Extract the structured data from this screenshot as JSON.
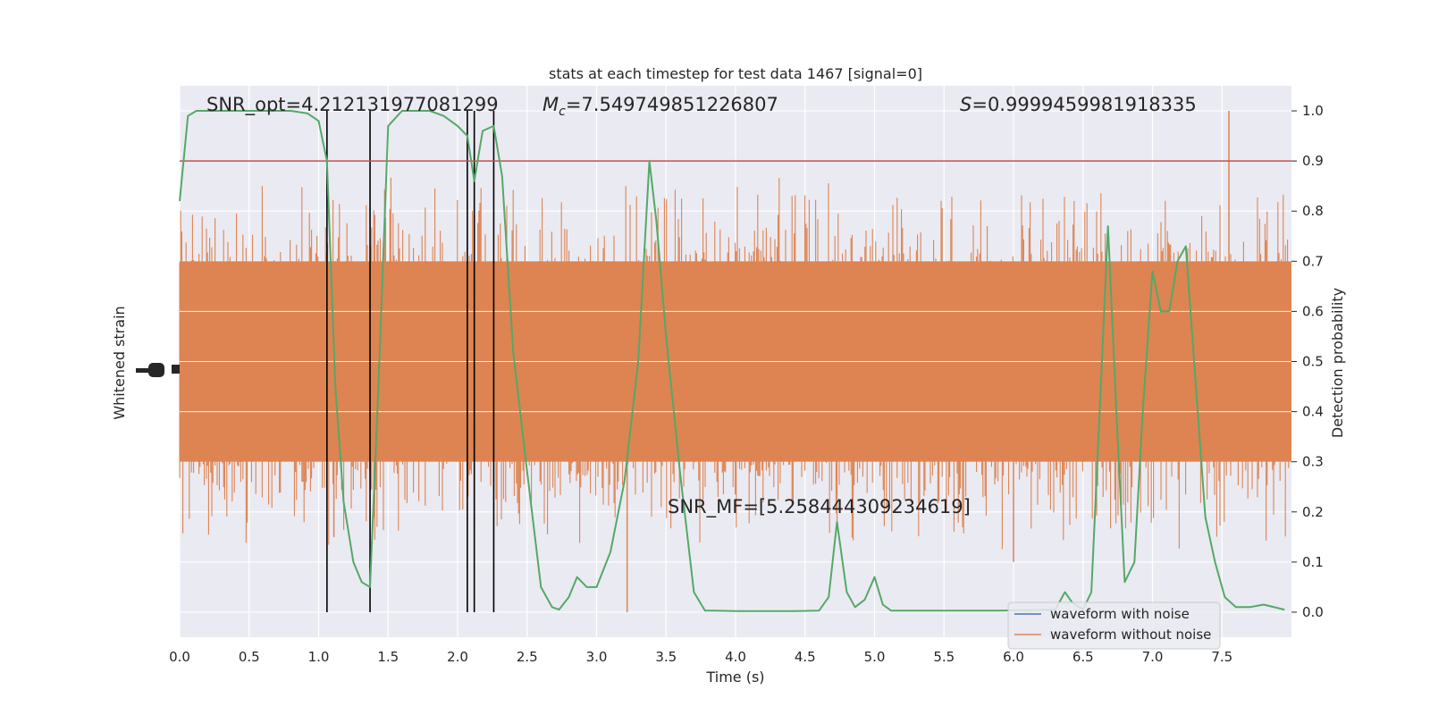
{
  "chart_data": {
    "type": "line",
    "title": "stats at each timestep for test data 1467 [signal=0]",
    "xlabel": "Time (s)",
    "ylabel_left": "Whitened strain",
    "ylabel_right": "Detection probability",
    "xlim": [
      0.0,
      8.0
    ],
    "ylim_right": [
      -0.05,
      1.05
    ],
    "x_ticks": [
      "0.0",
      "0.5",
      "1.0",
      "1.5",
      "2.0",
      "2.5",
      "3.0",
      "3.5",
      "4.0",
      "4.5",
      "5.0",
      "5.5",
      "6.0",
      "6.5",
      "7.0",
      "7.5"
    ],
    "y_ticks_right": [
      "0.0",
      "0.1",
      "0.2",
      "0.3",
      "0.4",
      "0.5",
      "0.6",
      "0.7",
      "0.8",
      "0.9",
      "1.0"
    ],
    "grid": true,
    "legend_position": "lower-right",
    "legend": [
      {
        "name": "waveform with noise",
        "color": "#4c72b0"
      },
      {
        "name": "waveform without noise",
        "color": "#dd8452"
      }
    ],
    "threshold": {
      "value": 0.9,
      "color": "#c44e52"
    },
    "detection_times": [
      1.06,
      1.37,
      2.07,
      2.12,
      2.26
    ],
    "annotations": {
      "snr_opt": "SNR_opt=4.212131977081299",
      "mc_label": "M",
      "mc_sub": "c",
      "mc_value": "=7.549749851226807",
      "s_label": "S",
      "s_value": "=0.9999459981918335",
      "snr_mf": "SNR_MF=[5.258444309234619]"
    },
    "strain_band": {
      "color": "#dd8452",
      "core_range": [
        0.3,
        0.7
      ],
      "spike_range": [
        0.0,
        1.0
      ]
    },
    "probability_series": {
      "name": "detection probability",
      "color": "#55a868",
      "x": [
        0.0,
        0.06,
        0.12,
        0.2,
        0.4,
        0.6,
        0.8,
        0.92,
        1.0,
        1.06,
        1.12,
        1.18,
        1.25,
        1.31,
        1.37,
        1.43,
        1.5,
        1.6,
        1.8,
        1.9,
        2.0,
        2.07,
        2.12,
        2.18,
        2.26,
        2.32,
        2.4,
        2.5,
        2.6,
        2.68,
        2.73,
        2.8,
        2.86,
        2.93,
        3.0,
        3.1,
        3.2,
        3.3,
        3.38,
        3.43,
        3.5,
        3.6,
        3.7,
        3.78,
        3.85,
        4.0,
        4.2,
        4.4,
        4.6,
        4.67,
        4.73,
        4.8,
        4.86,
        4.93,
        5.0,
        5.06,
        5.12,
        5.3,
        5.5,
        5.7,
        5.9,
        6.1,
        6.3,
        6.37,
        6.42,
        6.5,
        6.56,
        6.62,
        6.68,
        6.74,
        6.8,
        6.87,
        6.93,
        7.0,
        7.06,
        7.12,
        7.18,
        7.24,
        7.3,
        7.38,
        7.45,
        7.52,
        7.6,
        7.7,
        7.8,
        7.95
      ],
      "y": [
        0.82,
        0.99,
        1.0,
        1.0,
        1.0,
        1.0,
        1.0,
        0.995,
        0.98,
        0.9,
        0.45,
        0.22,
        0.1,
        0.06,
        0.05,
        0.45,
        0.97,
        1.0,
        1.0,
        0.99,
        0.97,
        0.95,
        0.86,
        0.96,
        0.97,
        0.87,
        0.52,
        0.28,
        0.05,
        0.01,
        0.005,
        0.03,
        0.07,
        0.05,
        0.05,
        0.12,
        0.26,
        0.5,
        0.9,
        0.78,
        0.55,
        0.28,
        0.04,
        0.003,
        0.003,
        0.002,
        0.002,
        0.002,
        0.003,
        0.03,
        0.18,
        0.04,
        0.01,
        0.025,
        0.07,
        0.015,
        0.003,
        0.003,
        0.003,
        0.003,
        0.003,
        0.004,
        0.005,
        0.04,
        0.02,
        0.005,
        0.04,
        0.4,
        0.77,
        0.4,
        0.06,
        0.1,
        0.4,
        0.68,
        0.6,
        0.6,
        0.7,
        0.73,
        0.5,
        0.19,
        0.1,
        0.03,
        0.01,
        0.01,
        0.015,
        0.005
      ]
    }
  }
}
